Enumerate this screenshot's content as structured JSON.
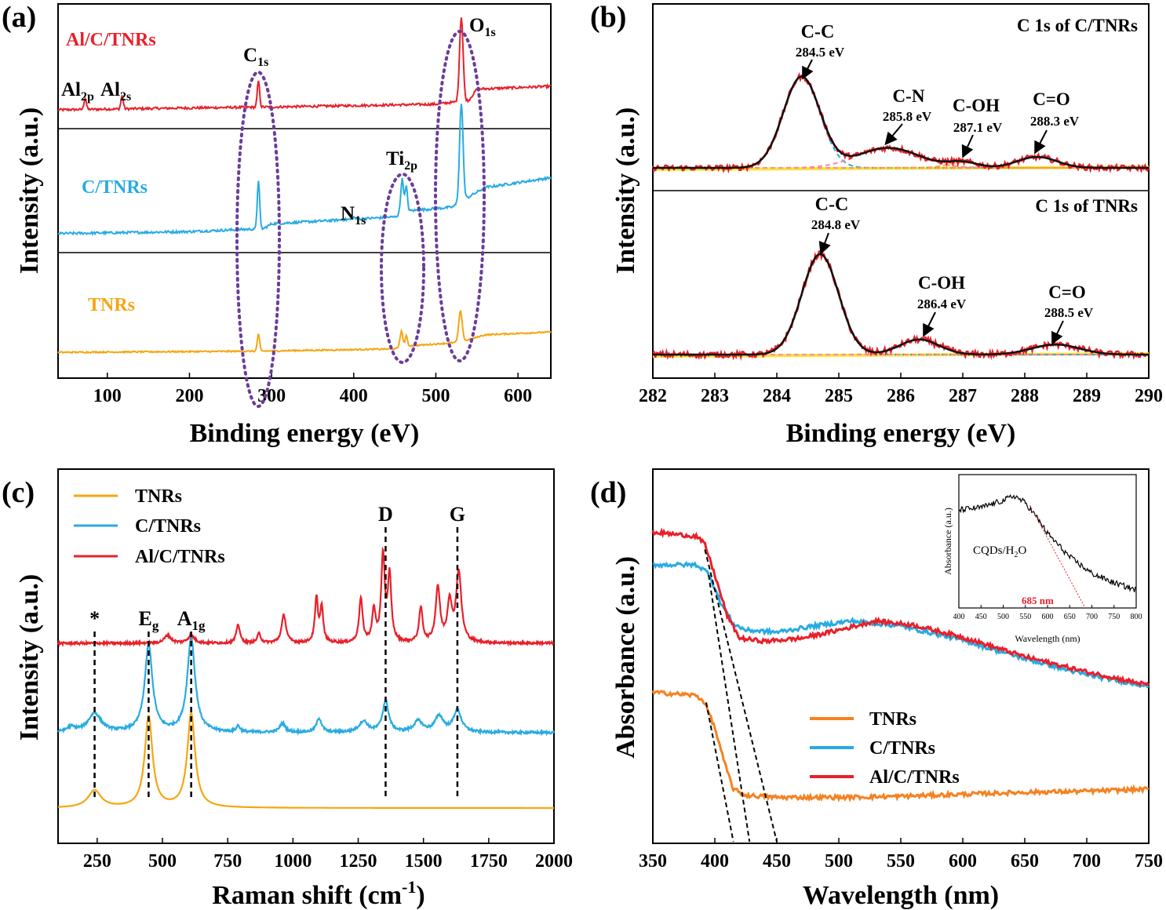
{
  "chart_data": [
    {
      "panel": "(a)",
      "type": "line",
      "xlabel": "Binding energy (eV)",
      "ylabel": "Intensity (a.u.)",
      "xlim": [
        40,
        640
      ],
      "xticks": [
        "100",
        "200",
        "300",
        "400",
        "500",
        "600"
      ],
      "series": [
        {
          "name": "Al/C/TNRs",
          "color": "#e8202a",
          "base": [
            [
              40,
              0.1
            ],
            [
              200,
              0.12
            ],
            [
              300,
              0.13
            ],
            [
              500,
              0.16
            ],
            [
              540,
              0.2
            ],
            [
              550,
              0.32
            ],
            [
              640,
              0.35
            ]
          ],
          "peaks": [
            [
              73,
              0.12,
              2
            ],
            [
              118,
              0.14,
              2
            ],
            [
              284,
              0.28,
              2
            ],
            [
              531,
              0.9,
              3
            ]
          ]
        },
        {
          "name": "C/TNRs",
          "color": "#29abe2",
          "base": [
            [
              40,
              0.05
            ],
            [
              200,
              0.07
            ],
            [
              290,
              0.1
            ],
            [
              300,
              0.15
            ],
            [
              450,
              0.22
            ],
            [
              465,
              0.28
            ],
            [
              520,
              0.32
            ],
            [
              535,
              0.4
            ],
            [
              560,
              0.52
            ],
            [
              640,
              0.62
            ]
          ],
          "peaks": [
            [
              284,
              0.5,
              2
            ],
            [
              400,
              0.02,
              2
            ],
            [
              459,
              0.35,
              2.5
            ],
            [
              464,
              0.25,
              2
            ],
            [
              531,
              1.0,
              3
            ]
          ]
        },
        {
          "name": "TNRs",
          "color": "#f5a613",
          "base": [
            [
              40,
              0.04
            ],
            [
              280,
              0.06
            ],
            [
              450,
              0.1
            ],
            [
              465,
              0.15
            ],
            [
              530,
              0.22
            ],
            [
              560,
              0.35
            ],
            [
              640,
              0.4
            ]
          ],
          "peaks": [
            [
              284,
              0.3,
              2
            ],
            [
              458,
              0.28,
              2.5
            ],
            [
              464,
              0.18,
              2
            ],
            [
              530,
              0.55,
              3
            ]
          ]
        }
      ],
      "annotations": [
        {
          "text": "Al",
          "sub": "2p"
        },
        {
          "text": "Al",
          "sub": "2s"
        },
        {
          "text": "C",
          "sub": "1s"
        },
        {
          "text": "O",
          "sub": "1s"
        },
        {
          "text": "N",
          "sub": "1s"
        },
        {
          "text": "Ti",
          "sub": "2p"
        }
      ]
    },
    {
      "panel": "(b)",
      "type": "line",
      "xlabel": "Binding energy (eV)",
      "ylabel": "Intensity (a.u.)",
      "xlim": [
        282,
        290
      ],
      "xticks": [
        "282",
        "283",
        "284",
        "285",
        "286",
        "287",
        "288",
        "289",
        "290"
      ],
      "subplots": [
        {
          "title": "C 1s  of C/TNRs",
          "components": [
            {
              "label": "C-C",
              "value": "284.5 eV",
              "center": 284.4,
              "height": 1.0,
              "width": 0.42,
              "color": "#29abe2"
            },
            {
              "label": "C-N",
              "value": "285.8 eV",
              "center": 285.8,
              "height": 0.22,
              "width": 0.7,
              "color": "#ff8aa0"
            },
            {
              "label": "C-OH",
              "value": "287.1 eV",
              "center": 287.0,
              "height": 0.06,
              "width": 0.35,
              "color": "#f5a613"
            },
            {
              "label": "C=O",
              "value": "288.3 eV",
              "center": 288.2,
              "height": 0.12,
              "width": 0.45,
              "color": "#ff8aa0"
            }
          ]
        },
        {
          "title": "C 1s  of TNRs",
          "components": [
            {
              "label": "C-C",
              "value": "284.8 eV",
              "center": 284.7,
              "height": 1.0,
              "width": 0.42,
              "color": "#29abe2"
            },
            {
              "label": "C-OH",
              "value": "286.4 eV",
              "center": 286.3,
              "height": 0.15,
              "width": 0.45,
              "color": "#ff8aa0"
            },
            {
              "label": "C=O",
              "value": "288.5 eV",
              "center": 288.5,
              "height": 0.1,
              "width": 0.55,
              "color": "#ff8aa0"
            }
          ]
        }
      ]
    },
    {
      "panel": "(c)",
      "type": "line",
      "xlabel": "Raman shift (cm",
      "xlabel_sup": "-1",
      "xlabel_tail": ")",
      "ylabel": "Intensity (a.u.)",
      "xlim": [
        100,
        2000
      ],
      "xticks": [
        "250",
        "500",
        "750",
        "1000",
        "1250",
        "1500",
        "1750",
        "2000"
      ],
      "series": [
        {
          "name": "TNRs",
          "color": "#f5a613",
          "offset": 0.0,
          "peaks": [
            [
              240,
              0.11,
              30
            ],
            [
              447,
              0.58,
              18
            ],
            [
              610,
              0.6,
              18
            ]
          ]
        },
        {
          "name": "C/TNRs",
          "color": "#29abe2",
          "offset": 0.48,
          "peaks": [
            [
              150,
              0.03,
              20
            ],
            [
              240,
              0.12,
              30
            ],
            [
              447,
              0.55,
              18
            ],
            [
              610,
              0.6,
              18
            ],
            [
              790,
              0.04,
              8
            ],
            [
              960,
              0.06,
              12
            ],
            [
              1100,
              0.09,
              12
            ],
            [
              1270,
              0.07,
              20
            ],
            [
              1355,
              0.2,
              14
            ],
            [
              1480,
              0.07,
              20
            ],
            [
              1560,
              0.1,
              20
            ],
            [
              1630,
              0.14,
              18
            ]
          ]
        },
        {
          "name": "Al/C/TNRs",
          "color": "#e8202a",
          "offset": 1.05,
          "peaks": [
            [
              520,
              0.05,
              15
            ],
            [
              610,
              0.05,
              15
            ],
            [
              790,
              0.12,
              8
            ],
            [
              870,
              0.06,
              8
            ],
            [
              965,
              0.18,
              10
            ],
            [
              1090,
              0.28,
              7
            ],
            [
              1110,
              0.22,
              7
            ],
            [
              1260,
              0.28,
              8
            ],
            [
              1310,
              0.2,
              8
            ],
            [
              1345,
              0.55,
              8
            ],
            [
              1370,
              0.42,
              8
            ],
            [
              1490,
              0.22,
              8
            ],
            [
              1555,
              0.35,
              10
            ],
            [
              1600,
              0.25,
              10
            ],
            [
              1635,
              0.45,
              12
            ]
          ]
        }
      ],
      "markers": [
        {
          "label": "*",
          "x": 240
        },
        {
          "label": "E",
          "sub": "g",
          "x": 447
        },
        {
          "label": "A",
          "sub": "1g",
          "x": 610
        },
        {
          "label": "D",
          "x": 1355
        },
        {
          "label": "G",
          "x": 1630
        }
      ]
    },
    {
      "panel": "(d)",
      "type": "line",
      "xlabel": "Wavelength (nm)",
      "ylabel": "Absorbance (a.u.)",
      "xlim": [
        350,
        750
      ],
      "xticks": [
        "350",
        "400",
        "450",
        "500",
        "550",
        "600",
        "650",
        "700",
        "750"
      ],
      "series": [
        {
          "name": "TNRs",
          "color": "#f58220",
          "points": [
            [
              350,
              1.25
            ],
            [
              385,
              1.22
            ],
            [
              392,
              1.15
            ],
            [
              400,
              0.9
            ],
            [
              408,
              0.55
            ],
            [
              415,
              0.3
            ],
            [
              425,
              0.24
            ],
            [
              450,
              0.22
            ],
            [
              500,
              0.22
            ],
            [
              550,
              0.23
            ],
            [
              600,
              0.25
            ],
            [
              650,
              0.27
            ],
            [
              700,
              0.28
            ],
            [
              750,
              0.3
            ]
          ]
        },
        {
          "name": "C/TNRs",
          "color": "#29abe2",
          "points": [
            [
              350,
              2.5
            ],
            [
              385,
              2.5
            ],
            [
              395,
              2.42
            ],
            [
              405,
              2.12
            ],
            [
              415,
              1.92
            ],
            [
              425,
              1.86
            ],
            [
              450,
              1.84
            ],
            [
              480,
              1.9
            ],
            [
              510,
              1.95
            ],
            [
              550,
              1.9
            ],
            [
              600,
              1.76
            ],
            [
              650,
              1.58
            ],
            [
              700,
              1.42
            ],
            [
              750,
              1.31
            ]
          ]
        },
        {
          "name": "Al/C/TNRs",
          "color": "#e8202a",
          "points": [
            [
              350,
              2.82
            ],
            [
              385,
              2.78
            ],
            [
              392,
              2.7
            ],
            [
              400,
              2.4
            ],
            [
              410,
              2.0
            ],
            [
              420,
              1.78
            ],
            [
              440,
              1.75
            ],
            [
              470,
              1.78
            ],
            [
              500,
              1.86
            ],
            [
              530,
              1.95
            ],
            [
              560,
              1.91
            ],
            [
              600,
              1.79
            ],
            [
              650,
              1.6
            ],
            [
              700,
              1.45
            ],
            [
              750,
              1.32
            ]
          ]
        }
      ],
      "tangents": [
        [
          393,
          1.15,
          415,
          0.0
        ],
        [
          395,
          2.4,
          428,
          0.0
        ],
        [
          392,
          2.65,
          450,
          0.0
        ]
      ],
      "inset": {
        "xlabel": "Wavelength (nm)",
        "ylabel": "Absorbance (a.u.)",
        "xlim": [
          400,
          800
        ],
        "xticks": [
          "400",
          "450",
          "500",
          "550",
          "600",
          "650",
          "700",
          "750",
          "800"
        ],
        "label": "CQDs/H",
        "label_sub": "2",
        "label_tail": "O",
        "edge": "685 nm",
        "points": [
          [
            400,
            0.78
          ],
          [
            450,
            0.8
          ],
          [
            500,
            0.86
          ],
          [
            525,
            0.9
          ],
          [
            550,
            0.84
          ],
          [
            575,
            0.72
          ],
          [
            600,
            0.58
          ],
          [
            625,
            0.48
          ],
          [
            650,
            0.38
          ],
          [
            700,
            0.24
          ],
          [
            750,
            0.16
          ],
          [
            800,
            0.1
          ]
        ],
        "tangent": [
          [
            560,
            0.82
          ],
          [
            685,
            0.0
          ]
        ]
      }
    }
  ]
}
